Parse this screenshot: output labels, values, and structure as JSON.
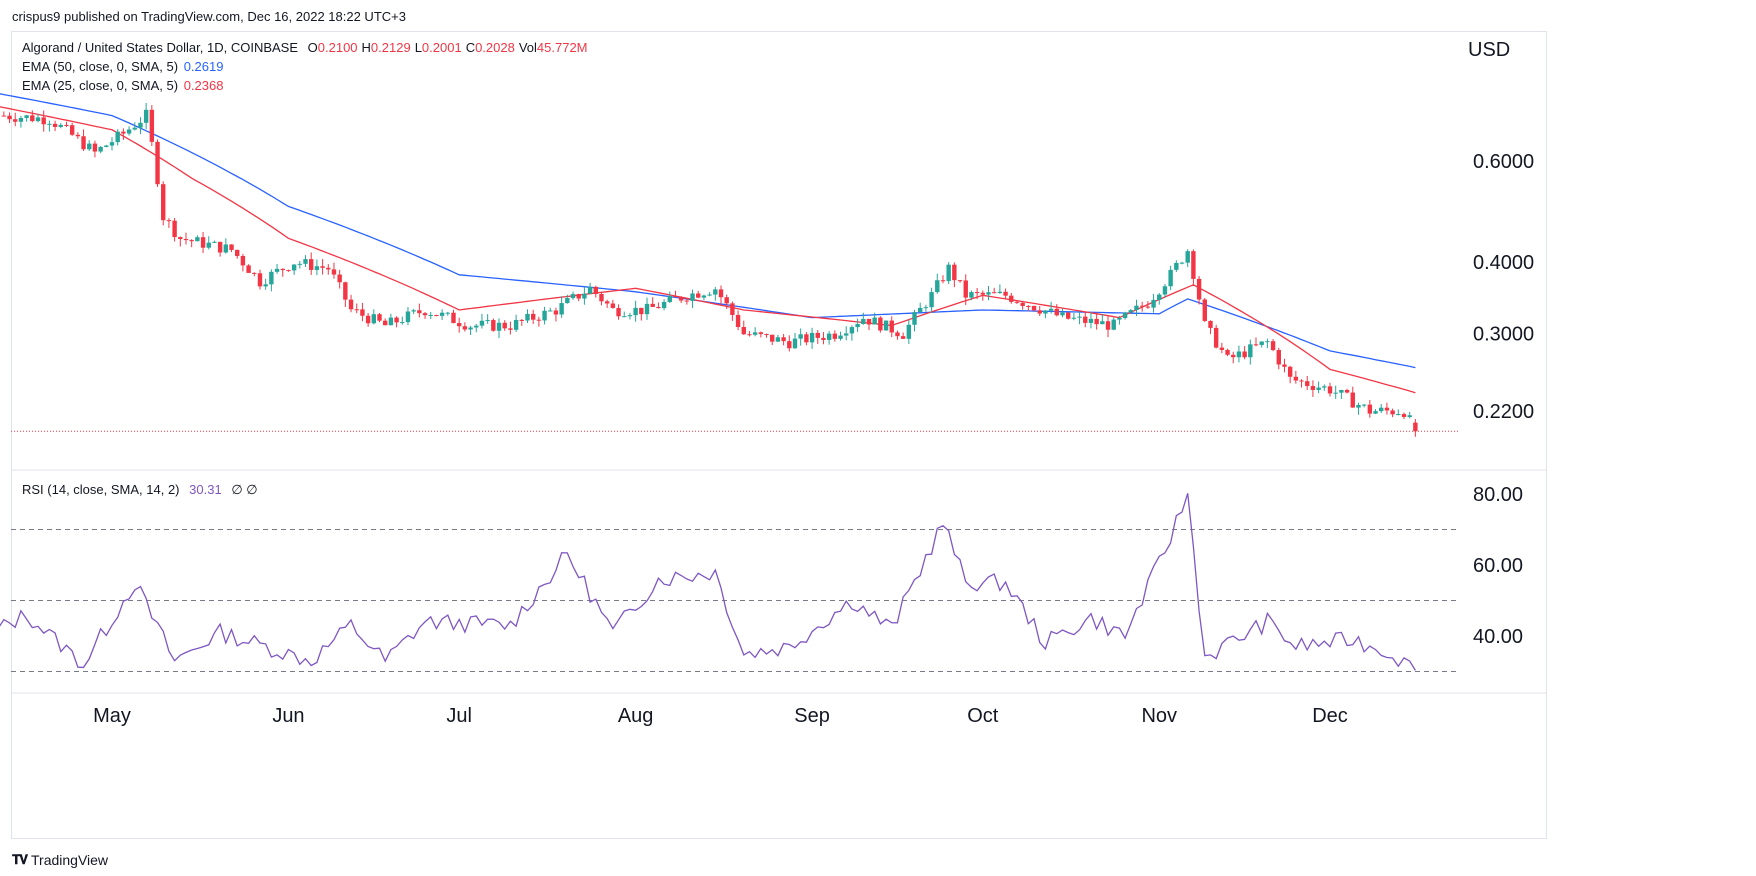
{
  "header": {
    "text": "crispus9 published on TradingView.com, Dec 16, 2022 18:22 UTC+3"
  },
  "legend": {
    "symbol": "Algorand / United States Dollar, 1D, COINBASE",
    "ohlc": [
      {
        "k": "O",
        "v": "0.2100"
      },
      {
        "k": "H",
        "v": "0.2129"
      },
      {
        "k": "L",
        "v": "0.2001"
      },
      {
        "k": "C",
        "v": "0.2028"
      },
      {
        "k": "Vol",
        "v": "45.772M"
      }
    ],
    "ema50_label": "EMA (50, close, 0, SMA, 5)",
    "ema50_value": "0.2619",
    "ema25_label": "EMA (25, close, 0, SMA, 5)",
    "ema25_value": "0.2368",
    "rsi_label": "RSI (14, close, SMA, 14, 2)",
    "rsi_value": "30.31",
    "rsi_extra": "∅  ∅"
  },
  "footer": {
    "brand": "TradingView"
  },
  "colors": {
    "up": "#26a69a",
    "down": "#f23645",
    "ema50": "#2962ff",
    "ema25": "#f23645",
    "rsi": "#7e57c2",
    "grid": "#787b86"
  },
  "chart_data": [
    {
      "type": "candlestick",
      "currency": "USD",
      "scale": "log",
      "yticks": [
        "0.6000",
        "0.4000",
        "0.3000",
        "0.2200"
      ],
      "xticks": [
        "May",
        "Jun",
        "Jul",
        "Aug",
        "Sep",
        "Oct",
        "Nov",
        "Dec"
      ],
      "last_close": 0.2028,
      "price_keypoints": [
        {
          "date": "2022-04-12",
          "close": 0.72
        },
        {
          "date": "2022-04-20",
          "close": 0.71
        },
        {
          "date": "2022-04-28",
          "close": 0.62
        },
        {
          "date": "2022-05-03",
          "close": 0.67
        },
        {
          "date": "2022-05-07",
          "close": 0.72
        },
        {
          "date": "2022-05-10",
          "close": 0.48
        },
        {
          "date": "2022-05-13",
          "close": 0.44
        },
        {
          "date": "2022-05-22",
          "close": 0.42
        },
        {
          "date": "2022-05-27",
          "close": 0.37
        },
        {
          "date": "2022-06-02",
          "close": 0.4
        },
        {
          "date": "2022-06-08",
          "close": 0.39
        },
        {
          "date": "2022-06-12",
          "close": 0.33
        },
        {
          "date": "2022-06-18",
          "close": 0.31
        },
        {
          "date": "2022-06-25",
          "close": 0.33
        },
        {
          "date": "2022-07-03",
          "close": 0.31
        },
        {
          "date": "2022-07-10",
          "close": 0.31
        },
        {
          "date": "2022-07-18",
          "close": 0.33
        },
        {
          "date": "2022-07-24",
          "close": 0.36
        },
        {
          "date": "2022-07-28",
          "close": 0.33
        },
        {
          "date": "2022-08-03",
          "close": 0.33
        },
        {
          "date": "2022-08-10",
          "close": 0.35
        },
        {
          "date": "2022-08-15",
          "close": 0.36
        },
        {
          "date": "2022-08-20",
          "close": 0.3
        },
        {
          "date": "2022-08-28",
          "close": 0.29
        },
        {
          "date": "2022-09-05",
          "close": 0.3
        },
        {
          "date": "2022-09-10",
          "close": 0.32
        },
        {
          "date": "2022-09-17",
          "close": 0.3
        },
        {
          "date": "2022-09-22",
          "close": 0.35
        },
        {
          "date": "2022-09-25",
          "close": 0.39
        },
        {
          "date": "2022-09-28",
          "close": 0.35
        },
        {
          "date": "2022-10-05",
          "close": 0.35
        },
        {
          "date": "2022-10-15",
          "close": 0.32
        },
        {
          "date": "2022-10-24",
          "close": 0.31
        },
        {
          "date": "2022-10-30",
          "close": 0.34
        },
        {
          "date": "2022-11-03",
          "close": 0.38
        },
        {
          "date": "2022-11-06",
          "close": 0.42
        },
        {
          "date": "2022-11-09",
          "close": 0.31
        },
        {
          "date": "2022-11-13",
          "close": 0.27
        },
        {
          "date": "2022-11-20",
          "close": 0.29
        },
        {
          "date": "2022-11-24",
          "close": 0.25
        },
        {
          "date": "2022-12-01",
          "close": 0.24
        },
        {
          "date": "2022-12-08",
          "close": 0.22
        },
        {
          "date": "2022-12-14",
          "close": 0.22
        },
        {
          "date": "2022-12-16",
          "close": 0.2028
        }
      ],
      "series": [
        {
          "name": "EMA (50, close, 0, SMA, 5)",
          "keypoints": [
            {
              "date": "2022-04-10",
              "value": 0.79
            },
            {
              "date": "2022-05-01",
              "value": 0.72
            },
            {
              "date": "2022-06-01",
              "value": 0.5
            },
            {
              "date": "2022-07-01",
              "value": 0.38
            },
            {
              "date": "2022-08-01",
              "value": 0.355
            },
            {
              "date": "2022-09-01",
              "value": 0.32
            },
            {
              "date": "2022-10-01",
              "value": 0.33
            },
            {
              "date": "2022-11-01",
              "value": 0.325
            },
            {
              "date": "2022-11-06",
              "value": 0.345
            },
            {
              "date": "2022-12-01",
              "value": 0.28
            },
            {
              "date": "2022-12-16",
              "value": 0.2619
            }
          ]
        },
        {
          "name": "EMA (25, close, 0, SMA, 5)",
          "keypoints": [
            {
              "date": "2022-04-10",
              "value": 0.75
            },
            {
              "date": "2022-05-01",
              "value": 0.68
            },
            {
              "date": "2022-05-15",
              "value": 0.56
            },
            {
              "date": "2022-06-01",
              "value": 0.44
            },
            {
              "date": "2022-07-01",
              "value": 0.33
            },
            {
              "date": "2022-08-01",
              "value": 0.36
            },
            {
              "date": "2022-08-20",
              "value": 0.33
            },
            {
              "date": "2022-09-15",
              "value": 0.31
            },
            {
              "date": "2022-10-01",
              "value": 0.35
            },
            {
              "date": "2022-10-25",
              "value": 0.32
            },
            {
              "date": "2022-11-07",
              "value": 0.365
            },
            {
              "date": "2022-12-01",
              "value": 0.26
            },
            {
              "date": "2022-12-16",
              "value": 0.2368
            }
          ]
        }
      ]
    },
    {
      "type": "line",
      "name": "RSI (14, close, SMA, 14, 2)",
      "yticks": [
        "80.00",
        "60.00",
        "40.00"
      ],
      "levels": [
        70,
        50,
        30
      ],
      "keypoints": [
        {
          "date": "2022-04-10",
          "value": 41
        },
        {
          "date": "2022-04-16",
          "value": 46
        },
        {
          "date": "2022-04-26",
          "value": 32
        },
        {
          "date": "2022-05-05",
          "value": 55
        },
        {
          "date": "2022-05-12",
          "value": 33
        },
        {
          "date": "2022-05-20",
          "value": 41
        },
        {
          "date": "2022-06-05",
          "value": 33
        },
        {
          "date": "2022-06-12",
          "value": 43
        },
        {
          "date": "2022-06-18",
          "value": 33
        },
        {
          "date": "2022-06-25",
          "value": 44
        },
        {
          "date": "2022-07-10",
          "value": 43
        },
        {
          "date": "2022-07-20",
          "value": 63
        },
        {
          "date": "2022-07-28",
          "value": 41
        },
        {
          "date": "2022-08-05",
          "value": 56
        },
        {
          "date": "2022-08-15",
          "value": 58
        },
        {
          "date": "2022-08-20",
          "value": 35
        },
        {
          "date": "2022-08-28",
          "value": 37
        },
        {
          "date": "2022-09-08",
          "value": 50
        },
        {
          "date": "2022-09-15",
          "value": 42
        },
        {
          "date": "2022-09-24",
          "value": 72
        },
        {
          "date": "2022-09-28",
          "value": 55
        },
        {
          "date": "2022-10-05",
          "value": 55
        },
        {
          "date": "2022-10-12",
          "value": 38
        },
        {
          "date": "2022-10-20",
          "value": 45
        },
        {
          "date": "2022-10-26",
          "value": 40
        },
        {
          "date": "2022-11-02",
          "value": 64
        },
        {
          "date": "2022-11-06",
          "value": 80
        },
        {
          "date": "2022-11-09",
          "value": 34
        },
        {
          "date": "2022-11-20",
          "value": 44
        },
        {
          "date": "2022-11-25",
          "value": 37
        },
        {
          "date": "2022-12-05",
          "value": 39
        },
        {
          "date": "2022-12-12",
          "value": 35
        },
        {
          "date": "2022-12-16",
          "value": 30.31
        }
      ]
    }
  ]
}
